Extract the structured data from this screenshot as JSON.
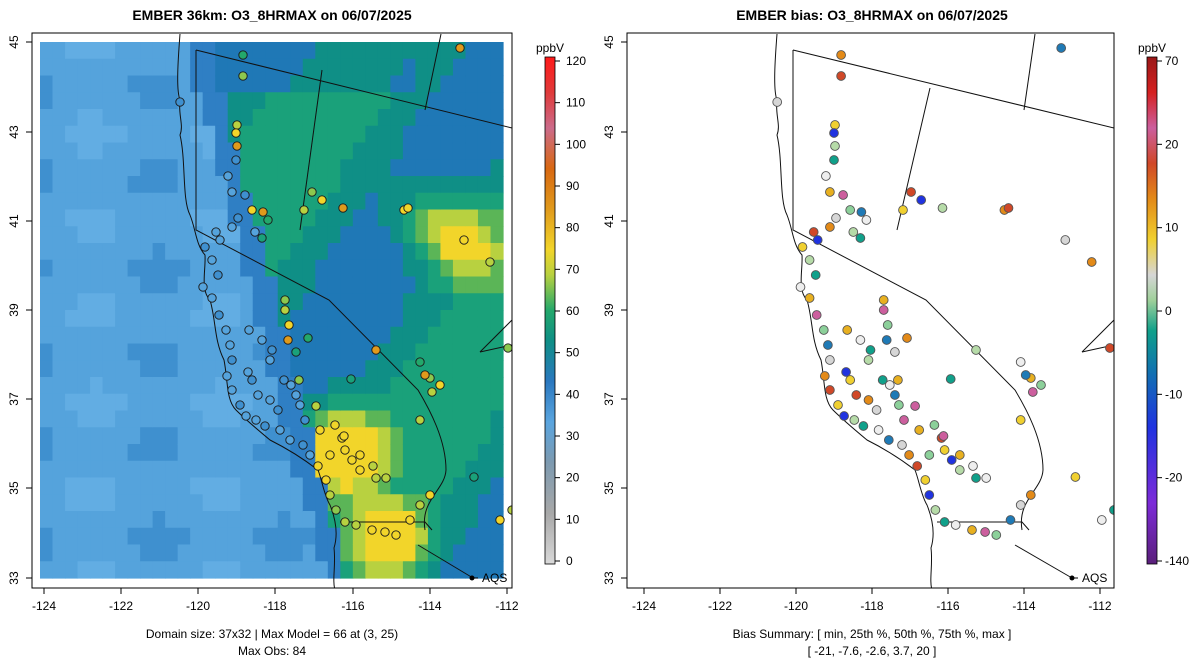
{
  "left_panel": {
    "title": "EMBER 36km: O3_8HRMAX on 06/07/2025",
    "colorbar_unit": "ppbV",
    "colorbar_ticks": [
      "120",
      "110",
      "100",
      "90",
      "80",
      "70",
      "60",
      "50",
      "40",
      "30",
      "20",
      "10",
      "0"
    ],
    "colorbar_range": [
      -3,
      122
    ],
    "caption_line1": "Domain size: 37x32 | Max Model = 66 at (3, 25)",
    "caption_line2": "Max Obs: 84",
    "network_label": "AQS"
  },
  "right_panel": {
    "title": "EMBER bias: O3_8HRMAX on 06/07/2025",
    "colorbar_unit": "ppbV",
    "colorbar_ticks": [
      "70",
      "20",
      "10",
      "0",
      "-10",
      "-20",
      "-140"
    ],
    "caption_line1": "Bias Summary: [ min, 25th %, 50th %, 75th %, max ]",
    "caption_line2": "[ -21,   -7.6,   -2.6,   3.7,   20 ]",
    "network_label": "AQS"
  },
  "axes": {
    "x_ticks": [
      "-124",
      "-122",
      "-120",
      "-118",
      "-116",
      "-114",
      "-112"
    ],
    "y_ticks": [
      "33",
      "35",
      "37",
      "39",
      "41",
      "43",
      "45"
    ],
    "lon_range": [
      -124.3,
      -111.6
    ],
    "lat_range": [
      32.7,
      45.3
    ]
  },
  "colors": {
    "ozone_ramp": [
      "#d9d9d9",
      "#9a9a9a",
      "#5aa5df",
      "#2a78bf",
      "#0f8f86",
      "#23a86b",
      "#b8d140",
      "#f2d52a",
      "#e09a1c",
      "#d86812",
      "#e03a34",
      "#ff2020"
    ],
    "bias_ramp": [
      "#5a1f7a",
      "#7d2bd8",
      "#2033e0",
      "#1172b0",
      "#10a08a",
      "#d6d6d6",
      "#f0d030",
      "#e38a18",
      "#d04828",
      "#cc5f9e",
      "#d52020",
      "#9a1818"
    ]
  }
}
